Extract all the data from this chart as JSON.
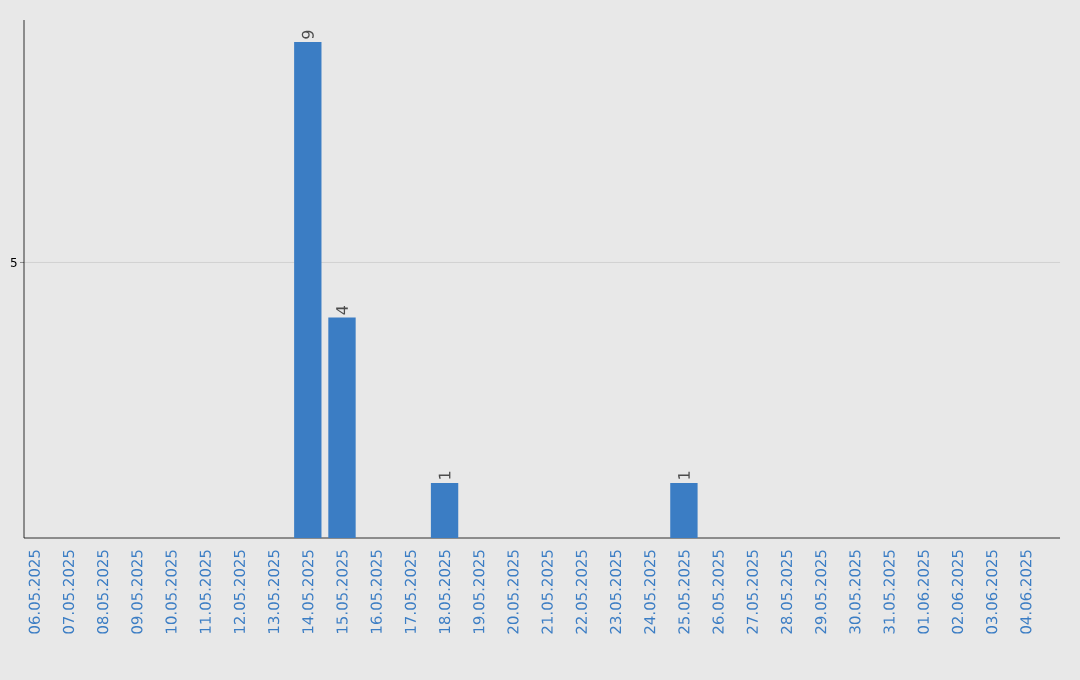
{
  "chart_data": {
    "type": "bar",
    "categories": [
      "06.05.2025",
      "07.05.2025",
      "08.05.2025",
      "09.05.2025",
      "10.05.2025",
      "11.05.2025",
      "12.05.2025",
      "13.05.2025",
      "14.05.2025",
      "15.05.2025",
      "16.05.2025",
      "17.05.2025",
      "18.05.2025",
      "19.05.2025",
      "20.05.2025",
      "21.05.2025",
      "22.05.2025",
      "23.05.2025",
      "24.05.2025",
      "25.05.2025",
      "26.05.2025",
      "27.05.2025",
      "28.05.2025",
      "29.05.2025",
      "30.05.2025",
      "31.05.2025",
      "01.06.2025",
      "02.06.2025",
      "03.06.2025",
      "04.06.2025"
    ],
    "values": [
      0,
      0,
      0,
      0,
      0,
      0,
      0,
      0,
      9,
      4,
      0,
      0,
      1,
      0,
      0,
      0,
      0,
      0,
      0,
      1,
      0,
      0,
      0,
      0,
      0,
      0,
      0,
      0,
      0,
      0
    ],
    "value_labels": [
      null,
      null,
      null,
      null,
      null,
      null,
      null,
      null,
      "9",
      "4",
      null,
      null,
      "1",
      null,
      null,
      null,
      null,
      null,
      null,
      "1",
      null,
      null,
      null,
      null,
      null,
      null,
      null,
      null,
      null,
      null
    ],
    "color": "#3b7dc4",
    "ylim": [
      0,
      9.4
    ],
    "yticks": [
      5
    ],
    "grid": "y"
  }
}
